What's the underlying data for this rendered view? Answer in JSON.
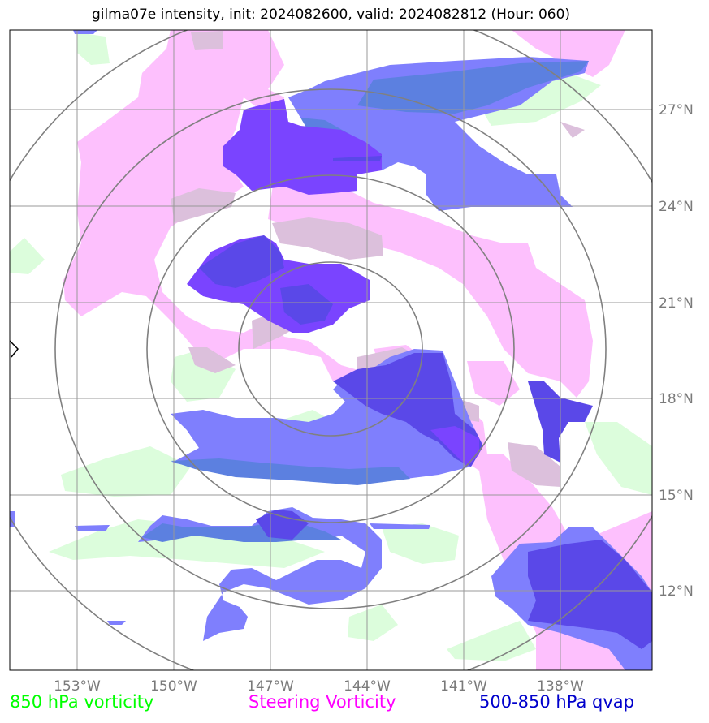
{
  "title": "gilma07e intensity, init: 2024082600, valid: 2024082812 (Hour: 060)",
  "axes": {
    "lon_ticks": [
      "153°W",
      "150°W",
      "147°W",
      "144°W",
      "141°W",
      "138°W"
    ],
    "lat_ticks": [
      "27°N",
      "24°N",
      "21°N",
      "18°N",
      "15°N",
      "12°N"
    ]
  },
  "legend": {
    "vort850": {
      "label": "850 hPa vorticity",
      "color": "#00ff00"
    },
    "steering": {
      "label": "Steering Vorticity",
      "color": "#ff00ff"
    },
    "qvap": {
      "label": "500-850 hPa qvap",
      "color": "#0000cc"
    }
  },
  "colors": {
    "vort850_fill": "#dcfddc",
    "steering_fill": "#fdc0fd",
    "qvap_fill": "#7f7ffd",
    "qvap_dark": "#5a48e8",
    "qvap_steering_overlap": "#7a44ff",
    "grid": "#999999",
    "range_ring": "#808080"
  }
}
